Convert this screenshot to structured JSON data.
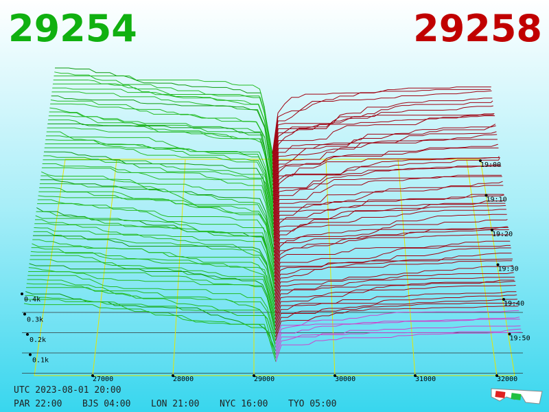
{
  "header": {
    "bid": "29254",
    "ask": "29258"
  },
  "price_axis": {
    "labels": [
      "27000",
      "28000",
      "29000",
      "30000",
      "31000",
      "32000"
    ]
  },
  "time_axis": {
    "labels": [
      "19:00",
      "19:10",
      "19:20",
      "19:30",
      "19:40",
      "19:50"
    ]
  },
  "volume_axis": {
    "labels": [
      "0.4k",
      "0.3k",
      "0.2k",
      "0.1k"
    ]
  },
  "footer": {
    "utc": "UTC 2023-08-01 20:00",
    "cities": [
      "PAR 22:00",
      "BJS 04:00",
      "LON 21:00",
      "NYC 16:00",
      "TYO 05:00"
    ]
  }
}
